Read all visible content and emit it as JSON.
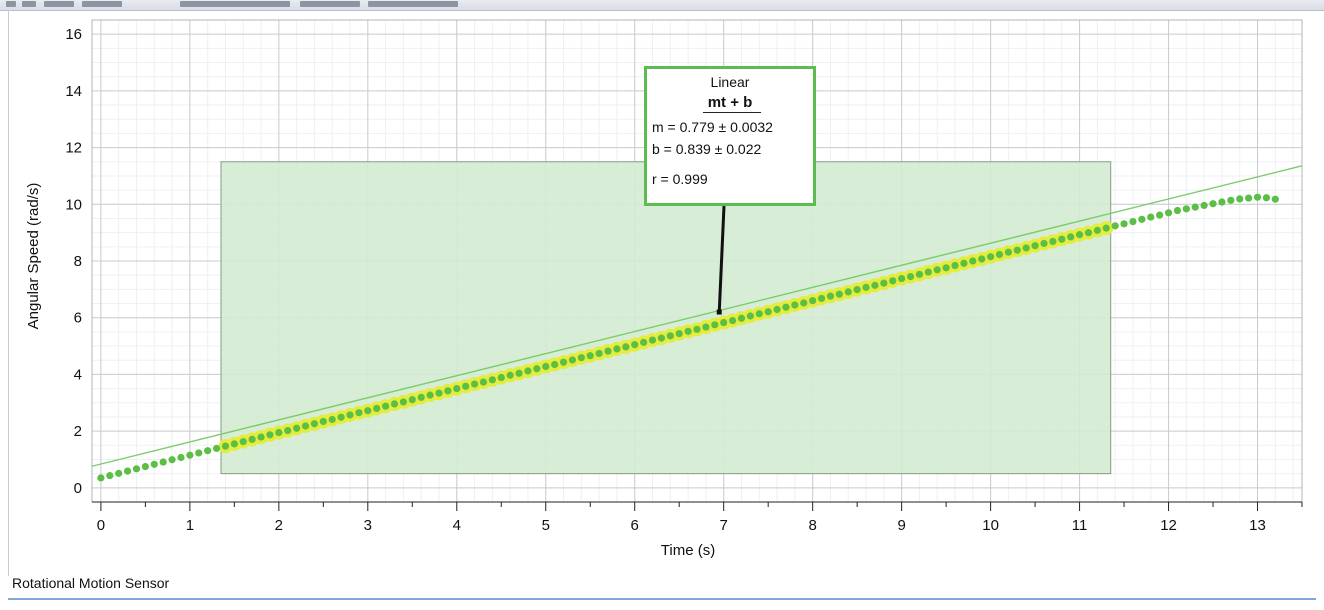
{
  "footer": {
    "sensor_name": "Rotational Motion Sensor"
  },
  "fit_box": {
    "title": "Linear",
    "equation": "mt + b",
    "m_text": "m = 0.779 ± 0.0032",
    "b_text": "b  = 0.839 ± 0.022",
    "r_text": "r = 0.999"
  },
  "colors": {
    "data_point": "#5cbf45",
    "selection_fill": "#d3ebd0",
    "selection_border": "#8a9a8a",
    "highlight": "#e4ec3c",
    "fit_line": "#7ccc6a",
    "fit_box_border": "#5bbd4f"
  },
  "chart_data": {
    "type": "scatter",
    "xlabel": "Time (s)",
    "ylabel": "Angular Speed (rad/s)",
    "xlim": [
      -0.1,
      13.5
    ],
    "ylim": [
      -0.5,
      16.5
    ],
    "x_ticks": [
      0,
      1,
      2,
      3,
      4,
      5,
      6,
      7,
      8,
      9,
      10,
      11,
      12,
      13
    ],
    "y_ticks": [
      0,
      2,
      4,
      6,
      8,
      10,
      12,
      14,
      16
    ],
    "grid": true,
    "series": [
      {
        "t_start": 0,
        "t_step": 0.1,
        "count": 133,
        "y": [
          0.35,
          0.43,
          0.51,
          0.59,
          0.67,
          0.75,
          0.83,
          0.91,
          0.99,
          1.07,
          1.15,
          1.23,
          1.31,
          1.39,
          1.47,
          1.55,
          1.63,
          1.71,
          1.79,
          1.87,
          1.95,
          2.02,
          2.1,
          2.18,
          2.26,
          2.34,
          2.41,
          2.49,
          2.57,
          2.65,
          2.72,
          2.8,
          2.88,
          2.96,
          3.03,
          3.11,
          3.19,
          3.27,
          3.34,
          3.42,
          3.5,
          3.58,
          3.66,
          3.73,
          3.81,
          3.89,
          3.97,
          4.04,
          4.12,
          4.2,
          4.28,
          4.35,
          4.43,
          4.51,
          4.59,
          4.66,
          4.74,
          4.82,
          4.9,
          4.97,
          5.05,
          5.13,
          5.21,
          5.28,
          5.36,
          5.44,
          5.52,
          5.59,
          5.67,
          5.75,
          5.83,
          5.9,
          5.98,
          6.06,
          6.14,
          6.21,
          6.29,
          6.37,
          6.45,
          6.52,
          6.6,
          6.68,
          6.76,
          6.83,
          6.91,
          6.99,
          7.07,
          7.14,
          7.22,
          7.3,
          7.38,
          7.45,
          7.53,
          7.61,
          7.69,
          7.76,
          7.84,
          7.92,
          8.0,
          8.07,
          8.15,
          8.23,
          8.31,
          8.38,
          8.46,
          8.54,
          8.62,
          8.69,
          8.77,
          8.85,
          8.93,
          9.0,
          9.08,
          9.16,
          9.24,
          9.31,
          9.39,
          9.47,
          9.55,
          9.62,
          9.7,
          9.78,
          9.84,
          9.9,
          9.96,
          10.02,
          10.08,
          10.14,
          10.19,
          10.22,
          10.25,
          10.23,
          10.18
        ]
      }
    ],
    "selection": {
      "x_range": [
        1.35,
        11.35
      ],
      "y_range": [
        0.5,
        11.5
      ]
    },
    "fit": {
      "type": "linear",
      "m": 0.779,
      "b": 0.839,
      "r": 0.999,
      "x_range": [
        -0.1,
        13.5
      ]
    },
    "annotation_anchor": {
      "x": 6.95,
      "y": 6.2
    }
  }
}
